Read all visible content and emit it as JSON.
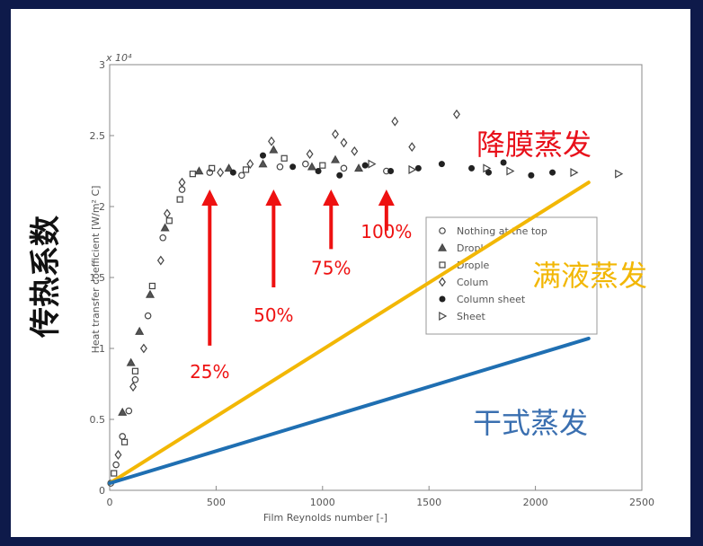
{
  "chart_data": {
    "type": "scatter",
    "xlabel": "Film Reynolds number [-]",
    "ylabel": "Heat transfer coefficient [W/m² C]",
    "y_multiplier": "x 10⁴",
    "side_ylabel": "传热系数",
    "xlim": [
      0,
      2500
    ],
    "ylim": [
      0,
      3
    ],
    "xticks": [
      0,
      500,
      1000,
      1500,
      2000,
      2500
    ],
    "yticks": [
      0,
      0.5,
      1,
      1.5,
      2,
      2.5,
      3
    ],
    "xtick_labels": [
      "0",
      "500",
      "1000",
      "1500",
      "2000",
      "2500"
    ],
    "ytick_labels": [
      "0",
      "0.5",
      "1",
      "1.5",
      "2",
      "2.5",
      "3"
    ],
    "legend_position": "right",
    "legend": [
      {
        "marker": "circle",
        "label": "Nothing at the top"
      },
      {
        "marker": "triangle",
        "label": "Dropl"
      },
      {
        "marker": "square",
        "label": "Drople"
      },
      {
        "marker": "diamond",
        "label": "Colum"
      },
      {
        "marker": "star",
        "label": "Column sheet"
      },
      {
        "marker": "triangle-right",
        "label": "Sheet"
      }
    ],
    "series": [
      {
        "marker": "circle",
        "points": [
          [
            5,
            0.05
          ],
          [
            30,
            0.18
          ],
          [
            60,
            0.38
          ],
          [
            90,
            0.56
          ],
          [
            120,
            0.78
          ],
          [
            180,
            1.23
          ],
          [
            250,
            1.78
          ],
          [
            340,
            2.12
          ],
          [
            470,
            2.24
          ],
          [
            620,
            2.22
          ],
          [
            800,
            2.28
          ],
          [
            920,
            2.3
          ],
          [
            1100,
            2.27
          ],
          [
            1300,
            2.25
          ]
        ]
      },
      {
        "marker": "triangle",
        "points": [
          [
            60,
            0.55
          ],
          [
            100,
            0.9
          ],
          [
            140,
            1.12
          ],
          [
            190,
            1.38
          ],
          [
            260,
            1.85
          ],
          [
            420,
            2.25
          ],
          [
            560,
            2.27
          ],
          [
            720,
            2.3
          ],
          [
            770,
            2.4
          ],
          [
            950,
            2.28
          ],
          [
            1060,
            2.33
          ],
          [
            1170,
            2.27
          ]
        ]
      },
      {
        "marker": "square",
        "points": [
          [
            20,
            0.12
          ],
          [
            70,
            0.34
          ],
          [
            120,
            0.84
          ],
          [
            200,
            1.44
          ],
          [
            280,
            1.9
          ],
          [
            330,
            2.05
          ],
          [
            390,
            2.23
          ],
          [
            480,
            2.27
          ],
          [
            640,
            2.26
          ],
          [
            820,
            2.34
          ],
          [
            1000,
            2.29
          ]
        ]
      },
      {
        "marker": "diamond",
        "points": [
          [
            40,
            0.25
          ],
          [
            110,
            0.73
          ],
          [
            160,
            1.0
          ],
          [
            240,
            1.62
          ],
          [
            270,
            1.95
          ],
          [
            340,
            2.17
          ],
          [
            520,
            2.24
          ],
          [
            660,
            2.3
          ],
          [
            760,
            2.46
          ],
          [
            940,
            2.37
          ],
          [
            1060,
            2.51
          ],
          [
            1100,
            2.45
          ],
          [
            1150,
            2.39
          ],
          [
            1340,
            2.6
          ],
          [
            1420,
            2.42
          ],
          [
            1630,
            2.65
          ]
        ]
      },
      {
        "marker": "star",
        "points": [
          [
            580,
            2.24
          ],
          [
            720,
            2.36
          ],
          [
            860,
            2.28
          ],
          [
            980,
            2.25
          ],
          [
            1080,
            2.22
          ],
          [
            1200,
            2.29
          ],
          [
            1320,
            2.25
          ],
          [
            1450,
            2.27
          ],
          [
            1560,
            2.3
          ],
          [
            1700,
            2.27
          ],
          [
            1780,
            2.24
          ],
          [
            1850,
            2.31
          ],
          [
            1980,
            2.22
          ],
          [
            2080,
            2.24
          ]
        ]
      },
      {
        "marker": "triangle-right",
        "points": [
          [
            1230,
            2.3
          ],
          [
            1420,
            2.26
          ],
          [
            1770,
            2.27
          ],
          [
            1880,
            2.25
          ],
          [
            2180,
            2.24
          ],
          [
            2390,
            2.23
          ]
        ]
      }
    ],
    "trend_lines": [
      {
        "label": "满液蒸发",
        "color": "#f2b705",
        "from": [
          0,
          0.05
        ],
        "to": [
          2250,
          2.17
        ]
      },
      {
        "label": "干式蒸发",
        "color": "#1f6fb2",
        "from": [
          0,
          0.05
        ],
        "to": [
          2250,
          1.07
        ]
      }
    ],
    "line_labels": [
      {
        "text": "降膜蒸发",
        "color": "#e8101a"
      },
      {
        "text": "满液蒸发",
        "color": "#f2b705"
      },
      {
        "text": "干式蒸发",
        "color": "#3a6fb0"
      }
    ],
    "arrows": [
      {
        "label": "25%",
        "x": 470,
        "tip_y": 2.12,
        "tail_y": 1.02
      },
      {
        "label": "50%",
        "x": 770,
        "tip_y": 2.12,
        "tail_y": 1.43
      },
      {
        "label": "75%",
        "x": 1040,
        "tip_y": 2.12,
        "tail_y": 1.7
      },
      {
        "label": "100%",
        "x": 1300,
        "tip_y": 2.12,
        "tail_y": 1.83
      }
    ],
    "grid": false
  }
}
